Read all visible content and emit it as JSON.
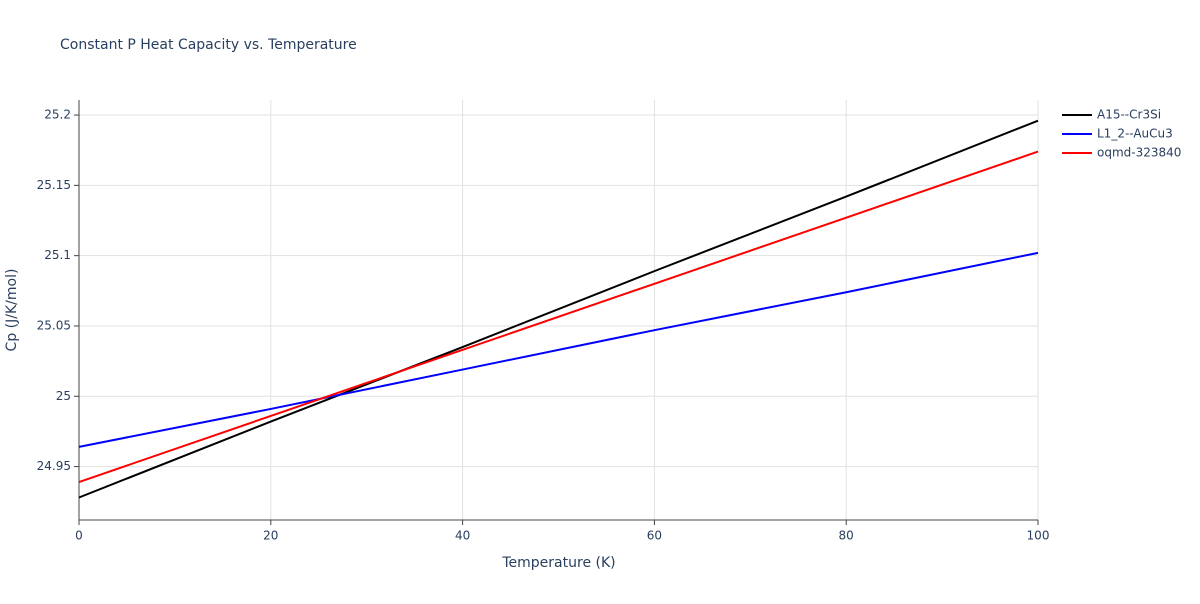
{
  "chart_data": {
    "type": "line",
    "title": "Constant P Heat Capacity vs. Temperature",
    "x_label": "Temperature (K)",
    "y_label": "Cp (J/K/mol)",
    "x": [
      0,
      20,
      40,
      60,
      80,
      100
    ],
    "series": [
      {
        "name": "A15--Cr3Si",
        "color": "#000000",
        "values": [
          24.928,
          24.982,
          25.035,
          25.089,
          25.142,
          25.196
        ]
      },
      {
        "name": "L1_2--AuCu3",
        "color": "#0000ff",
        "values": [
          24.964,
          24.991,
          25.019,
          25.047,
          25.074,
          25.102
        ]
      },
      {
        "name": "oqmd-323840",
        "color": "#ff0000",
        "values": [
          24.939,
          24.986,
          25.033,
          25.08,
          25.127,
          25.174
        ]
      }
    ],
    "xlim": [
      0,
      100
    ],
    "xticks": [
      0,
      20,
      40,
      60,
      80,
      100
    ],
    "ylim": [
      24.912,
      25.2107
    ],
    "yticks": [
      24.95,
      25,
      25.05,
      25.1,
      25.15,
      25.2
    ],
    "grid": true,
    "legend": "right"
  }
}
